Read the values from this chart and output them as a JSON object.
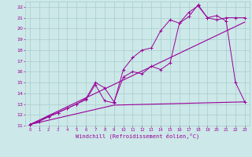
{
  "bg_color": "#cce8e8",
  "grid_color": "#aacccc",
  "line_color": "#990099",
  "xlim": [
    -0.5,
    23.5
  ],
  "ylim": [
    11,
    22.5
  ],
  "xticks": [
    0,
    1,
    2,
    3,
    4,
    5,
    6,
    7,
    8,
    9,
    10,
    11,
    12,
    13,
    14,
    15,
    16,
    17,
    18,
    19,
    20,
    21,
    22,
    23
  ],
  "yticks": [
    11,
    12,
    13,
    14,
    15,
    16,
    17,
    18,
    19,
    20,
    21,
    22
  ],
  "xlabel": "Windchill (Refroidissement éolien,°C)",
  "line1_x": [
    0,
    23
  ],
  "line1_y": [
    11.1,
    20.6
  ],
  "line2_x": [
    0,
    9,
    23
  ],
  "line2_y": [
    11.1,
    12.9,
    13.2
  ],
  "series3_x": [
    0,
    1,
    2,
    3,
    4,
    5,
    6,
    7,
    8,
    9,
    10,
    11,
    12,
    13,
    14,
    15,
    16,
    17,
    18,
    19,
    20,
    21,
    22,
    23
  ],
  "series3_y": [
    11.1,
    11.4,
    11.9,
    12.2,
    12.6,
    13.0,
    13.5,
    15.0,
    14.5,
    13.2,
    15.5,
    16.0,
    15.8,
    16.5,
    16.2,
    16.8,
    20.5,
    21.1,
    22.2,
    21.0,
    21.2,
    20.7,
    15.0,
    13.2
  ],
  "series4_x": [
    0,
    1,
    2,
    3,
    4,
    5,
    6,
    7,
    8,
    9,
    10,
    11,
    12,
    13,
    14,
    15,
    16,
    17,
    18,
    19,
    20,
    21,
    22,
    23
  ],
  "series4_y": [
    11.1,
    11.4,
    11.8,
    12.2,
    12.6,
    13.0,
    13.4,
    14.8,
    13.3,
    13.1,
    16.2,
    17.3,
    18.0,
    18.2,
    19.8,
    20.8,
    20.5,
    21.5,
    22.1,
    21.0,
    20.8,
    21.0,
    21.0,
    21.0
  ]
}
